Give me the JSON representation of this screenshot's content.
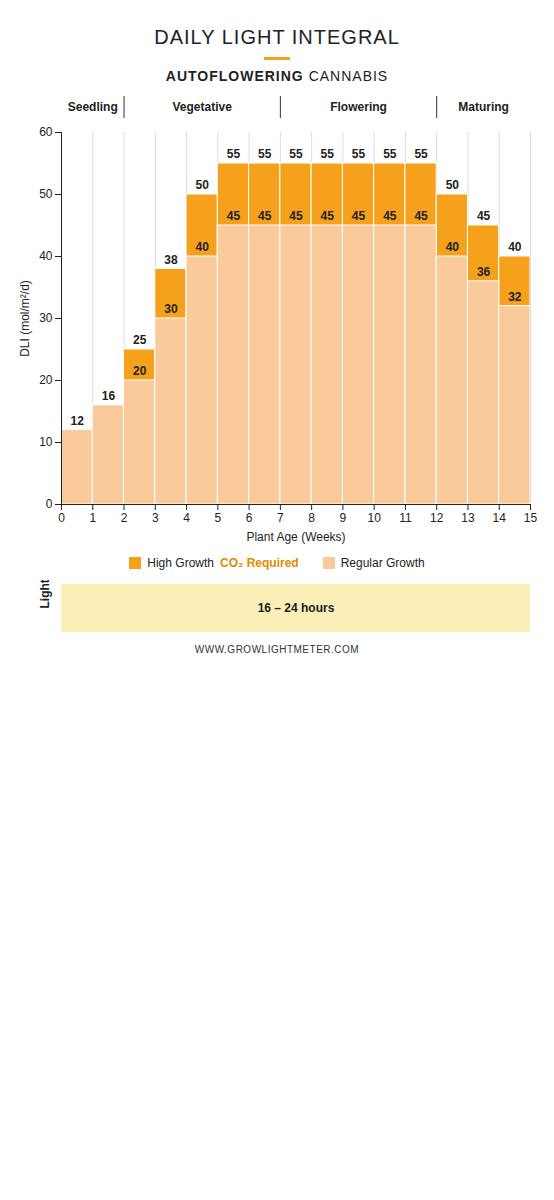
{
  "chart_data": {
    "type": "bar",
    "title": "DAILY LIGHT INTEGRAL",
    "subtitle": "AUTOFLOWERING CANNABIS",
    "x_label": "Plant Age (Weeks)",
    "y_label": "DLI (mol/m²/d)",
    "x": [
      0,
      1,
      2,
      3,
      4,
      5,
      6,
      7,
      8,
      9,
      10,
      11,
      12,
      13,
      14
    ],
    "series": [
      {
        "name": "High Growth",
        "note": "CO₂ Required",
        "color": "#f5a11c",
        "values": [
          null,
          null,
          25,
          38,
          50,
          55,
          55,
          55,
          55,
          55,
          55,
          55,
          50,
          45,
          40
        ]
      },
      {
        "name": "Regular Growth",
        "color": "#fbca9a",
        "values": [
          12,
          16,
          20,
          30,
          40,
          45,
          45,
          45,
          45,
          45,
          45,
          45,
          40,
          36,
          32
        ]
      }
    ],
    "stacked": false,
    "data_labels": true,
    "xlim": [
      0,
      15
    ],
    "xticks": [
      0,
      1,
      2,
      3,
      4,
      5,
      6,
      7,
      8,
      9,
      10,
      11,
      12,
      13,
      14,
      15
    ],
    "ylim": [
      0,
      60
    ],
    "yticks": [
      0,
      10,
      20,
      30,
      40,
      50,
      60
    ],
    "grid": "x",
    "legend": "bottom",
    "phases": [
      {
        "label": "Seedling",
        "start": 0,
        "end": 2
      },
      {
        "label": "Vegetative",
        "start": 2,
        "end": 7
      },
      {
        "label": "Flowering",
        "start": 7,
        "end": 12
      },
      {
        "label": "Maturing",
        "start": 12,
        "end": 15
      }
    ],
    "light": {
      "label": "Light",
      "text": "16 – 24 hours",
      "start": 0,
      "end": 15
    },
    "source": "WWW.GROWLIGHTMETER.COM"
  }
}
